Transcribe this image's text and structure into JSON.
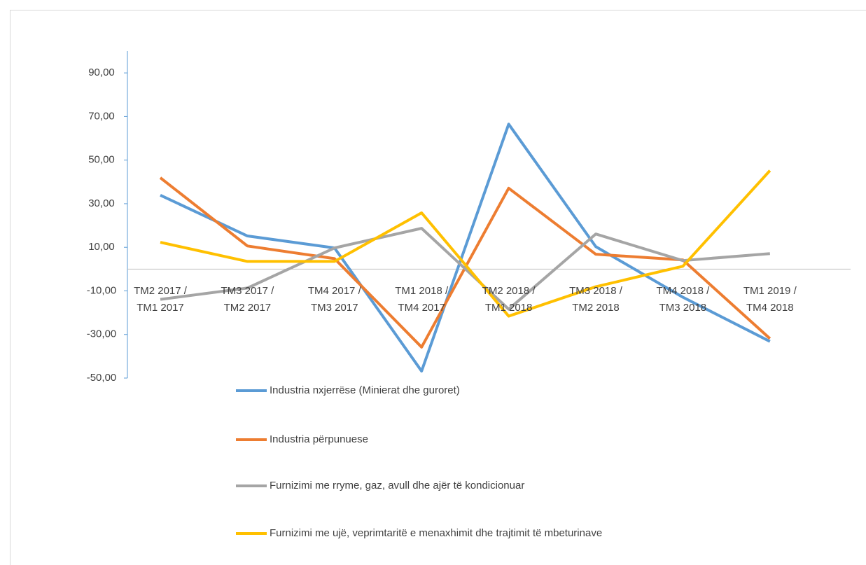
{
  "chart_data": {
    "type": "line",
    "categories": [
      "TM2 2017 / TM1 2017",
      "TM3 2017 / TM2 2017",
      "TM4 2017 / TM3 2017",
      "TM1 2018 / TM4 2017",
      "TM2 2018 / TM1 2018",
      "TM3 2018 / TM2 2018",
      "TM4 2018 / TM3 2018",
      "TM1 2019 / TM4 2018"
    ],
    "series": [
      {
        "name": "Industria nxjerrëse (Minierat dhe guroret)",
        "color": "#5b9bd5",
        "values": [
          33.9,
          15.2,
          9.7,
          -46.8,
          66.5,
          10.3,
          -12.9,
          -33.2
        ]
      },
      {
        "name": "Industria përpunuese",
        "color": "#ed7d31",
        "values": [
          41.9,
          10.6,
          4.8,
          -35.8,
          37.1,
          6.8,
          4.2,
          -31.9
        ]
      },
      {
        "name": "Furnizimi me rryme, gaz, avull dhe ajër të kondicionuar",
        "color": "#a5a5a5",
        "values": [
          -13.9,
          -8.7,
          9.7,
          18.7,
          -18.4,
          16.1,
          3.9,
          7.1
        ]
      },
      {
        "name": "Furnizimi me ujë, veprimtaritë e menaxhimit dhe trajtimit të mbeturinave",
        "color": "#ffc000",
        "values": [
          12.3,
          3.5,
          3.5,
          25.8,
          -21.6,
          -8.1,
          1.3,
          45.2
        ]
      }
    ],
    "ylim": [
      -50,
      100
    ],
    "yticks": [
      {
        "value": 90,
        "label": "90,00"
      },
      {
        "value": 70,
        "label": "70,00"
      },
      {
        "value": 50,
        "label": "50,00"
      },
      {
        "value": 30,
        "label": "30,00"
      },
      {
        "value": 10,
        "label": "10,00"
      },
      {
        "value": -10,
        "label": "-10,00"
      },
      {
        "value": -30,
        "label": "-30,00"
      },
      {
        "value": -50,
        "label": "-50,00"
      }
    ],
    "grid": false,
    "legend": "bottom"
  }
}
